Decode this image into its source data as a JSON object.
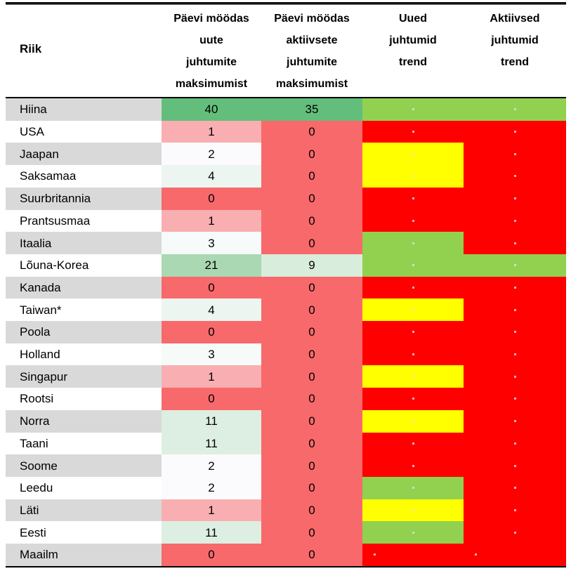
{
  "chart_data": {
    "type": "table",
    "title": "",
    "columns": [
      {
        "id": "country",
        "label": "Riik"
      },
      {
        "id": "days_since_new_max",
        "label": "Päevi möödas\nuute\njuhtumite\nmaksimumist"
      },
      {
        "id": "days_since_active_max",
        "label": "Päevi möödas\naktiivsete\njuhtumite\nmaksimumist"
      },
      {
        "id": "new_cases_trend",
        "label": "Uued\njuhtumid\ntrend"
      },
      {
        "id": "active_cases_trend",
        "label": "Aktiivsed\njuhtumid\ntrend"
      }
    ],
    "palette": {
      "trend_red": "#FF0000",
      "trend_yellow": "#FFFF00",
      "trend_green": "#92D050",
      "stripe_gray": "#D9D9D9",
      "stripe_white": "#FFFFFF",
      "heat_min_red": "#F8696B",
      "heat_mid_white": "#FCFCFF",
      "heat_max_green": "#63BE7B"
    },
    "rows": [
      {
        "country": "Hiina",
        "days_new": "40",
        "days_new_bg": "#63BE7B",
        "days_active": "35",
        "days_active_bg": "#63BE7B",
        "trend_new": "green",
        "trend_active": "green",
        "spark": "center"
      },
      {
        "country": "USA",
        "days_new": "1",
        "days_new_bg": "#F9AEB1",
        "days_active": "0",
        "days_active_bg": "#F8696B",
        "trend_new": "red",
        "trend_active": "red",
        "spark": "center"
      },
      {
        "country": "Jaapan",
        "days_new": "2",
        "days_new_bg": "#FBFBFE",
        "days_active": "0",
        "days_active_bg": "#F8696B",
        "trend_new": "yellow",
        "trend_active": "red",
        "spark": "center"
      },
      {
        "country": "Saksamaa",
        "days_new": "4",
        "days_new_bg": "#EDF5F0",
        "days_active": "0",
        "days_active_bg": "#F8696B",
        "trend_new": "yellow",
        "trend_active": "red",
        "spark": "center"
      },
      {
        "country": "Suurbritannia",
        "days_new": "0",
        "days_new_bg": "#F8696B",
        "days_active": "0",
        "days_active_bg": "#F8696B",
        "trend_new": "red",
        "trend_active": "red",
        "spark": "center"
      },
      {
        "country": "Prantsusmaa",
        "days_new": "1",
        "days_new_bg": "#F9AEB1",
        "days_active": "0",
        "days_active_bg": "#F8696B",
        "trend_new": "red",
        "trend_active": "red",
        "spark": "center"
      },
      {
        "country": "Itaalia",
        "days_new": "3",
        "days_new_bg": "#F6FAF8",
        "days_active": "0",
        "days_active_bg": "#F8696B",
        "trend_new": "green",
        "trend_active": "red",
        "spark": "center"
      },
      {
        "country": "Lõuna-Korea",
        "days_new": "21",
        "days_new_bg": "#A9D8B3",
        "days_active": "9",
        "days_active_bg": "#D9EDDD",
        "trend_new": "green",
        "trend_active": "green",
        "spark": "center"
      },
      {
        "country": "Kanada",
        "days_new": "0",
        "days_new_bg": "#F8696B",
        "days_active": "0",
        "days_active_bg": "#F8696B",
        "trend_new": "red",
        "trend_active": "red",
        "spark": "center"
      },
      {
        "country": "Taiwan*",
        "days_new": "4",
        "days_new_bg": "#EDF5F0",
        "days_active": "0",
        "days_active_bg": "#F8696B",
        "trend_new": "yellow",
        "trend_active": "red",
        "spark": "center"
      },
      {
        "country": "Poola",
        "days_new": "0",
        "days_new_bg": "#F8696B",
        "days_active": "0",
        "days_active_bg": "#F8696B",
        "trend_new": "red",
        "trend_active": "red",
        "spark": "center"
      },
      {
        "country": "Holland",
        "days_new": "3",
        "days_new_bg": "#F6FAF8",
        "days_active": "0",
        "days_active_bg": "#F8696B",
        "trend_new": "red",
        "trend_active": "red",
        "spark": "center"
      },
      {
        "country": "Singapur",
        "days_new": "1",
        "days_new_bg": "#F9AEB1",
        "days_active": "0",
        "days_active_bg": "#F8696B",
        "trend_new": "yellow",
        "trend_active": "red",
        "spark": "center"
      },
      {
        "country": "Rootsi",
        "days_new": "0",
        "days_new_bg": "#F8696B",
        "days_active": "0",
        "days_active_bg": "#F8696B",
        "trend_new": "red",
        "trend_active": "red",
        "spark": "center"
      },
      {
        "country": "Norra",
        "days_new": "11",
        "days_new_bg": "#DCEFE2",
        "days_active": "0",
        "days_active_bg": "#F8696B",
        "trend_new": "yellow",
        "trend_active": "red",
        "spark": "center"
      },
      {
        "country": "Taani",
        "days_new": "11",
        "days_new_bg": "#DCEFE2",
        "days_active": "0",
        "days_active_bg": "#F8696B",
        "trend_new": "red",
        "trend_active": "red",
        "spark": "center"
      },
      {
        "country": "Soome",
        "days_new": "2",
        "days_new_bg": "#FBFBFE",
        "days_active": "0",
        "days_active_bg": "#F8696B",
        "trend_new": "red",
        "trend_active": "red",
        "spark": "center"
      },
      {
        "country": "Leedu",
        "days_new": "2",
        "days_new_bg": "#FBFBFE",
        "days_active": "0",
        "days_active_bg": "#F8696B",
        "trend_new": "green",
        "trend_active": "red",
        "spark": "center"
      },
      {
        "country": "Läti",
        "days_new": "1",
        "days_new_bg": "#F9AEB1",
        "days_active": "0",
        "days_active_bg": "#F8696B",
        "trend_new": "yellow",
        "trend_active": "red",
        "spark": "center"
      },
      {
        "country": "Eesti",
        "days_new": "11",
        "days_new_bg": "#DCEFE2",
        "days_active": "0",
        "days_active_bg": "#F8696B",
        "trend_new": "green",
        "trend_active": "red",
        "spark": "center"
      },
      {
        "country": "Maailm",
        "days_new": "0",
        "days_new_bg": "#F8696B",
        "days_active": "0",
        "days_active_bg": "#F8696B",
        "trend_new": "red",
        "trend_active": "red",
        "spark": "left"
      }
    ]
  }
}
